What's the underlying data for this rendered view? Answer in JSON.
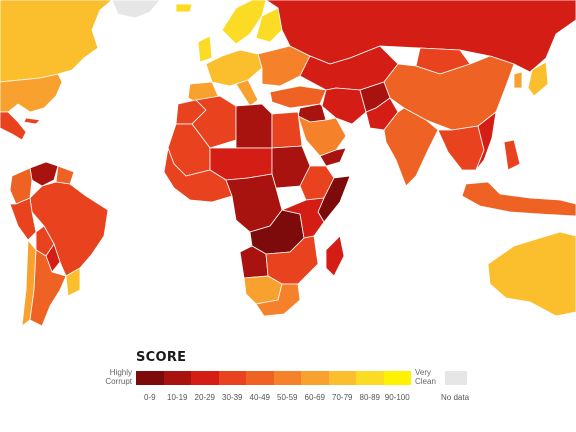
{
  "legend": {
    "title": "SCORE",
    "low_label_line1": "Highly",
    "low_label_line2": "Corrupt",
    "high_label_line1": "Very",
    "high_label_line2": "Clean",
    "bins": [
      {
        "label": "0-9",
        "color": "#7d0b0b"
      },
      {
        "label": "10-19",
        "color": "#a8120f"
      },
      {
        "label": "20-29",
        "color": "#d41e15"
      },
      {
        "label": "30-39",
        "color": "#e8431e"
      },
      {
        "label": "40-49",
        "color": "#ee6224"
      },
      {
        "label": "50-59",
        "color": "#f5822a"
      },
      {
        "label": "60-69",
        "color": "#f9a12e"
      },
      {
        "label": "70-79",
        "color": "#fbbe2d"
      },
      {
        "label": "80-89",
        "color": "#fcdb25"
      },
      {
        "label": "90-100",
        "color": "#fff200"
      }
    ],
    "no_data_label": "No data",
    "no_data_color": "#e6e6e6"
  },
  "map": {
    "ocean_color": "#ffffff",
    "border_color": "#ffffff"
  }
}
